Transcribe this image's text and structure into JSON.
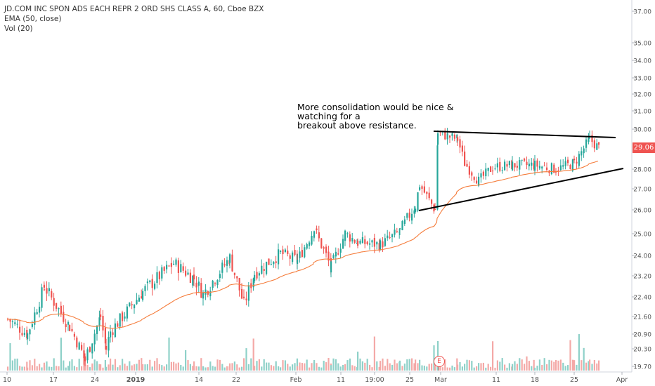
{
  "legend": {
    "symbol": "JD.COM INC SPON ADS EACH REPR 2 ORD SHS CLASS A, 60, Cboe BZX",
    "ema": "EMA (50, close)",
    "vol": "Vol (20)"
  },
  "annotation": {
    "line1": "More consolidation would be nice & watching for a",
    "line2": "breakout above resistance."
  },
  "last_price": "29.06",
  "earnings_marker": "E",
  "colors": {
    "up": "#26a69a",
    "down": "#ef5350",
    "ema": "#f57c3b",
    "trendline": "#000000",
    "axis_text": "#555555",
    "grid": "#e0e3eb"
  },
  "chart_data": {
    "type": "candlestick",
    "title": "JD.COM INC SPON ADS EACH REPR 2 ORD SHS CLASS A, 60, Cboe BZX",
    "interval": "60",
    "y_scale": "log",
    "ylim": [
      19.5,
      37.5
    ],
    "y_ticks": [
      "37.00",
      "35.00",
      "34.00",
      "33.00",
      "32.00",
      "31.00",
      "30.00",
      "28.00",
      "27.00",
      "26.00",
      "25.00",
      "24.00",
      "23.20",
      "22.40",
      "21.60",
      "20.90",
      "20.30",
      "19.70"
    ],
    "x_ticks": [
      "10",
      "17",
      "24",
      "2019",
      "14",
      "22",
      "Feb",
      "11",
      "19:00",
      "25",
      "Mar",
      "11",
      "18",
      "25",
      "Apr"
    ],
    "price_path": [
      [
        "10",
        21.5
      ],
      [
        "14",
        20.9
      ],
      [
        "17",
        22.8
      ],
      [
        "21",
        21.2
      ],
      [
        "24",
        19.9
      ],
      [
        "26",
        21.6
      ],
      [
        "27",
        20.3
      ],
      [
        "2019",
        21.0
      ],
      [
        "3",
        22.6
      ],
      [
        "7",
        23.7
      ],
      [
        "10",
        23.1
      ],
      [
        "14",
        22.5
      ],
      [
        "17",
        23.9
      ],
      [
        "22",
        22.1
      ],
      [
        "25",
        23.3
      ],
      [
        "28",
        24.1
      ],
      [
        "Feb",
        23.8
      ],
      [
        "5",
        25.2
      ],
      [
        "8",
        23.5
      ],
      [
        "11",
        25.0
      ],
      [
        "14",
        24.6
      ],
      [
        "19:00",
        24.5
      ],
      [
        "22",
        25.1
      ],
      [
        "25",
        26.2
      ],
      [
        "26",
        27.2
      ],
      [
        "28",
        26.0
      ],
      [
        "Mar",
        29.8
      ],
      [
        "5",
        29.5
      ],
      [
        "6",
        28.3
      ],
      [
        "8",
        27.4
      ],
      [
        "11",
        28.1
      ],
      [
        "15",
        28.2
      ],
      [
        "18",
        28.2
      ],
      [
        "22",
        28.0
      ],
      [
        "25",
        28.3
      ],
      [
        "27",
        29.5
      ],
      [
        "28",
        29.06
      ]
    ],
    "ema_50": "close",
    "volume_period": 20,
    "trendlines": [
      {
        "name": "resistance",
        "from": [
          "Feb 28",
          30.0
        ],
        "to": [
          "Apr 1",
          29.7
        ]
      },
      {
        "name": "support",
        "from": [
          "Feb 27",
          25.9
        ],
        "to": [
          "Apr 1",
          28.0
        ]
      }
    ],
    "last_close": 29.06
  }
}
